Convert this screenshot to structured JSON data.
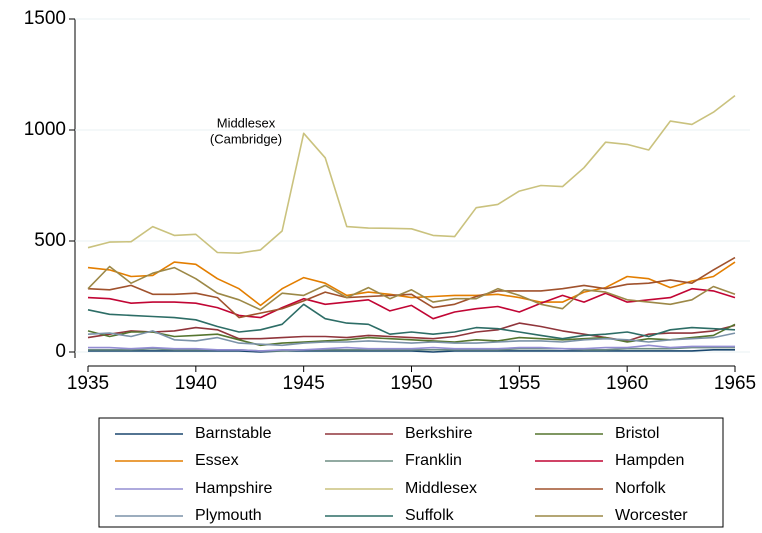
{
  "chart_data": {
    "type": "line",
    "x": [
      1935,
      1936,
      1937,
      1938,
      1939,
      1940,
      1941,
      1942,
      1943,
      1944,
      1945,
      1946,
      1947,
      1948,
      1949,
      1950,
      1951,
      1952,
      1953,
      1954,
      1955,
      1956,
      1957,
      1958,
      1959,
      1960,
      1961,
      1962,
      1963,
      1964,
      1965
    ],
    "xlim": [
      1935,
      1965
    ],
    "xticks": [
      1935,
      1940,
      1945,
      1950,
      1955,
      1960,
      1965
    ],
    "ylim": [
      0,
      1500
    ],
    "yticks": [
      0,
      500,
      1000,
      1500
    ],
    "grid": true,
    "legend": "bottom",
    "annotation": [
      "Middlesex",
      "(Cambridge)"
    ],
    "series": [
      {
        "name": "Barnstable",
        "color": "#1a476f",
        "values": [
          5,
          5,
          5,
          5,
          5,
          5,
          5,
          5,
          0,
          5,
          5,
          5,
          5,
          5,
          5,
          5,
          0,
          5,
          5,
          5,
          5,
          5,
          5,
          5,
          5,
          5,
          5,
          5,
          5,
          10,
          10
        ]
      },
      {
        "name": "Berkshire",
        "color": "#90353b",
        "values": [
          65,
          80,
          95,
          90,
          95,
          110,
          100,
          60,
          60,
          65,
          70,
          70,
          65,
          75,
          70,
          65,
          60,
          70,
          90,
          100,
          130,
          115,
          95,
          80,
          65,
          50,
          80,
          85,
          85,
          95,
          120
        ]
      },
      {
        "name": "Bristol",
        "color": "#55752f",
        "values": [
          95,
          70,
          90,
          90,
          70,
          75,
          80,
          55,
          30,
          40,
          45,
          50,
          55,
          65,
          60,
          55,
          50,
          45,
          55,
          50,
          65,
          60,
          55,
          60,
          65,
          45,
          60,
          55,
          65,
          75,
          125
        ]
      },
      {
        "name": "Essex",
        "color": "#e37e00",
        "values": [
          380,
          370,
          340,
          345,
          405,
          395,
          330,
          285,
          210,
          285,
          335,
          310,
          255,
          270,
          260,
          245,
          250,
          255,
          255,
          260,
          245,
          225,
          225,
          270,
          290,
          340,
          330,
          290,
          320,
          340,
          405
        ]
      },
      {
        "name": "Franklin",
        "color": "#6e8e84",
        "values": [
          10,
          10,
          10,
          15,
          10,
          10,
          10,
          10,
          5,
          5,
          10,
          10,
          10,
          10,
          10,
          10,
          10,
          10,
          10,
          10,
          15,
          15,
          15,
          10,
          10,
          15,
          15,
          15,
          20,
          20,
          20
        ]
      },
      {
        "name": "Hampden",
        "color": "#c10534",
        "values": [
          245,
          240,
          220,
          225,
          225,
          220,
          200,
          165,
          155,
          200,
          240,
          215,
          225,
          235,
          185,
          210,
          150,
          180,
          195,
          205,
          180,
          220,
          255,
          225,
          265,
          225,
          235,
          245,
          285,
          275,
          245
        ]
      },
      {
        "name": "Hampshire",
        "color": "#938dd2",
        "values": [
          20,
          20,
          15,
          20,
          15,
          15,
          10,
          10,
          5,
          10,
          10,
          15,
          20,
          15,
          15,
          15,
          20,
          15,
          15,
          15,
          20,
          20,
          15,
          15,
          20,
          20,
          30,
          20,
          25,
          25,
          25
        ]
      },
      {
        "name": "Middlesex",
        "color": "#cac27e",
        "values": [
          470,
          495,
          497,
          565,
          525,
          530,
          448,
          445,
          460,
          545,
          985,
          875,
          565,
          558,
          557,
          555,
          525,
          520,
          650,
          665,
          725,
          750,
          745,
          830,
          945,
          935,
          910,
          1040,
          1025,
          1080,
          1155
        ]
      },
      {
        "name": "Norfolk",
        "color": "#a0522d",
        "values": [
          285,
          280,
          300,
          260,
          260,
          265,
          245,
          155,
          175,
          195,
          230,
          270,
          245,
          250,
          255,
          260,
          200,
          215,
          250,
          275,
          275,
          275,
          285,
          300,
          285,
          305,
          310,
          325,
          310,
          370,
          425
        ]
      },
      {
        "name": "Plymouth",
        "color": "#7b92a8",
        "values": [
          80,
          85,
          70,
          95,
          55,
          50,
          65,
          40,
          35,
          30,
          40,
          45,
          45,
          50,
          45,
          40,
          45,
          40,
          40,
          45,
          50,
          50,
          45,
          55,
          60,
          55,
          45,
          55,
          60,
          65,
          85
        ]
      },
      {
        "name": "Suffolk",
        "color": "#2d6d66",
        "values": [
          190,
          170,
          165,
          160,
          155,
          145,
          115,
          90,
          100,
          125,
          215,
          150,
          130,
          125,
          80,
          90,
          80,
          90,
          110,
          105,
          90,
          75,
          60,
          75,
          80,
          90,
          70,
          100,
          110,
          105,
          100
        ]
      },
      {
        "name": "Worcester",
        "color": "#9c8847",
        "values": [
          285,
          385,
          310,
          355,
          380,
          330,
          265,
          235,
          190,
          265,
          255,
          300,
          245,
          290,
          240,
          280,
          225,
          240,
          240,
          285,
          255,
          215,
          195,
          280,
          270,
          235,
          225,
          215,
          235,
          295,
          260
        ]
      }
    ]
  }
}
